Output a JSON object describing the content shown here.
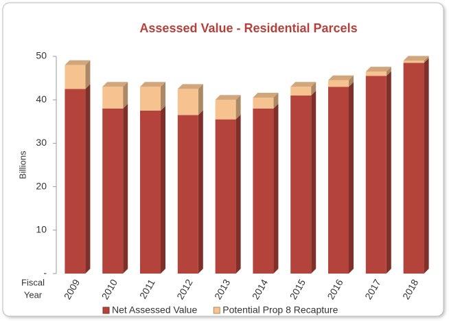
{
  "chart_data": {
    "type": "bar",
    "stacked": true,
    "title": "Assessed Value - Residential Parcels",
    "y_label": "Billions",
    "x_label_lines": [
      "Fiscal",
      "Year"
    ],
    "categories": [
      "2009",
      "2010",
      "2011",
      "2012",
      "2013",
      "2014",
      "2015",
      "2016",
      "2017",
      "2018"
    ],
    "series": [
      {
        "name": "Net Assessed Value",
        "color": "#b4443b",
        "values": [
          42.5,
          38,
          37.5,
          36.5,
          35.5,
          38,
          41,
          43,
          45.5,
          48.5
        ]
      },
      {
        "name": "Potential Prop 8 Recapture",
        "color": "#f6c390",
        "values": [
          5.5,
          5,
          5.5,
          6,
          4.5,
          2.5,
          2,
          1.5,
          1,
          0.5
        ]
      }
    ],
    "ylim": [
      0,
      50
    ],
    "yticks": [
      {
        "value": 0,
        "label": "-"
      },
      10,
      20,
      30,
      40,
      50
    ],
    "grid": false,
    "legend": "bottom"
  }
}
